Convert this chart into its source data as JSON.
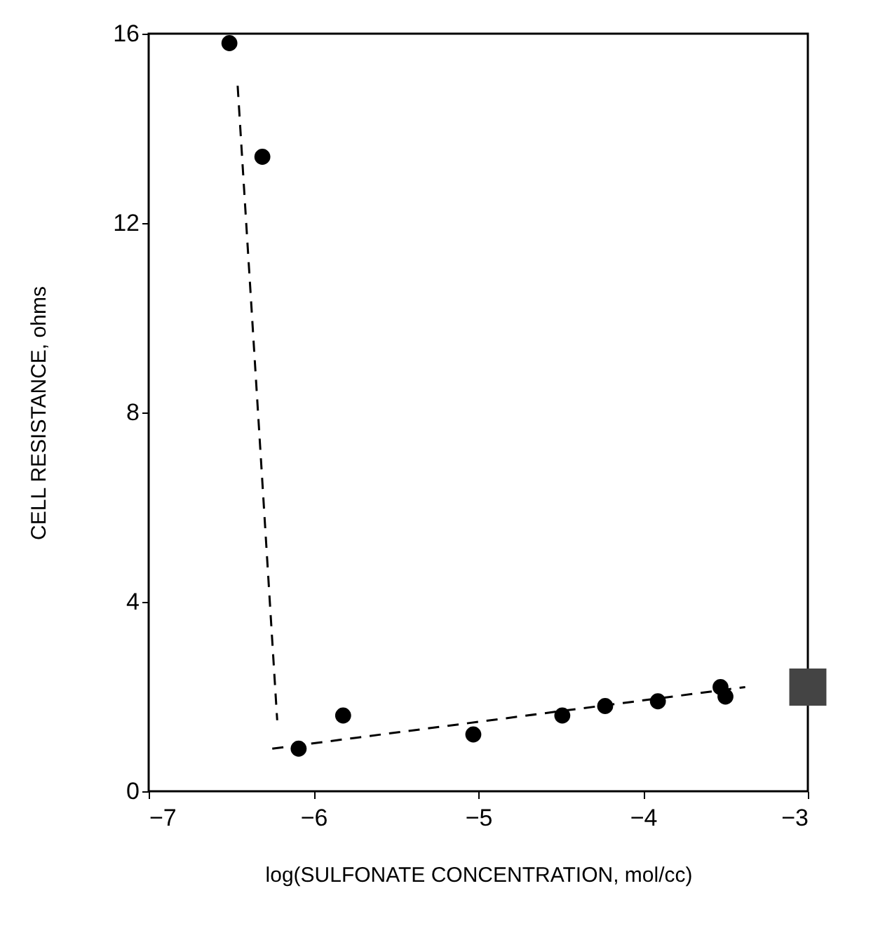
{
  "chart_data": {
    "type": "scatter",
    "xlabel": "log(SULFONATE CONCENTRATION, mol/cc)",
    "ylabel": "CELL RESISTANCE, ohms",
    "xlim": [
      -7,
      -3
    ],
    "xticks": [
      -7,
      -6,
      -5,
      -4,
      -3
    ],
    "ylim": [
      0,
      16
    ],
    "yticks": [
      0,
      4,
      8,
      12,
      16
    ],
    "grid": false,
    "series": [
      {
        "marker": "circle",
        "color": "#000000",
        "x": [
          -6.51,
          -6.31,
          -6.09,
          -5.82,
          -5.03,
          -4.49,
          -4.23,
          -3.91,
          -3.53,
          -3.5
        ],
        "values": [
          15.8,
          13.4,
          0.9,
          1.6,
          1.2,
          1.6,
          1.8,
          1.9,
          2.2,
          2.0
        ]
      },
      {
        "type": "line",
        "line_style": "dashed",
        "color": "#000000",
        "x": [
          -6.46,
          -6.22
        ],
        "values": [
          14.9,
          1.5
        ]
      },
      {
        "type": "line",
        "line_style": "dashed",
        "color": "#000000",
        "x": [
          -6.25,
          -3.38
        ],
        "values": [
          0.9,
          2.2
        ]
      },
      {
        "marker": "square",
        "color": "#444444",
        "x": [
          -3
        ],
        "values": [
          2.2
        ]
      }
    ]
  }
}
